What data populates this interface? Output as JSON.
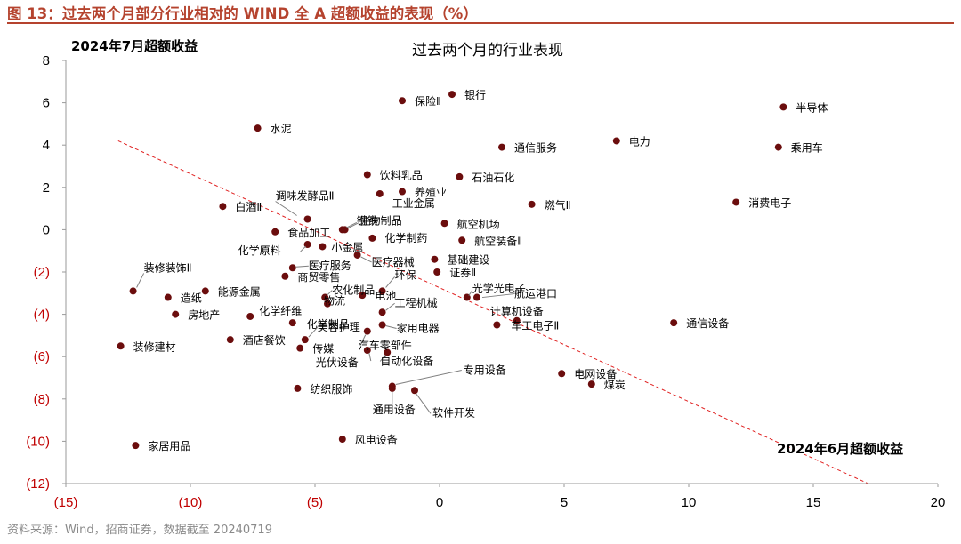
{
  "header": {
    "figure_title": "图 13：过去两个月部分行业相对的 WIND 全 A 超额收益的表现（%）"
  },
  "footer": {
    "source": "资料来源：Wind，招商证券，数据截至 20240719"
  },
  "colors": {
    "accent": "#b5432e",
    "point": "#6b0d0d",
    "trend": "#e02020",
    "negative_tick": "#c00000"
  },
  "chart_data": {
    "type": "scatter",
    "title": "过去两个月的行业表现",
    "xlabel": "2024年6月超额收益",
    "ylabel": "2024年7月超额收益",
    "xlim": [
      -15,
      20
    ],
    "ylim": [
      -12,
      8
    ],
    "x_ticks": [
      "(15)",
      "(10)",
      "(5)",
      "0",
      "5",
      "10",
      "15",
      "20"
    ],
    "y_ticks": [
      "8",
      "6",
      "4",
      "2",
      "0",
      "(2)",
      "(4)",
      "(6)",
      "(8)",
      "(10)",
      "(12)"
    ],
    "grid": false,
    "trend_line": {
      "style": "dashed",
      "from": [
        -12.9,
        4.2
      ],
      "to": [
        17.2,
        -12.0
      ]
    },
    "points": [
      {
        "name": "银行",
        "x": 0.5,
        "y": 6.4
      },
      {
        "name": "保险Ⅱ",
        "x": -1.5,
        "y": 6.1
      },
      {
        "name": "半导体",
        "x": 13.8,
        "y": 5.8
      },
      {
        "name": "水泥",
        "x": -7.3,
        "y": 4.8
      },
      {
        "name": "通信服务",
        "x": 2.5,
        "y": 3.9
      },
      {
        "name": "电力",
        "x": 7.1,
        "y": 4.2
      },
      {
        "name": "乘用车",
        "x": 13.6,
        "y": 3.9
      },
      {
        "name": "饮料乳品",
        "x": -2.9,
        "y": 2.6
      },
      {
        "name": "石油石化",
        "x": 0.8,
        "y": 2.5
      },
      {
        "name": "养殖业",
        "x": -1.5,
        "y": 1.8
      },
      {
        "name": "工业金属",
        "x": -2.4,
        "y": 1.7
      },
      {
        "name": "消费电子",
        "x": 11.9,
        "y": 1.3
      },
      {
        "name": "燃气Ⅱ",
        "x": 3.7,
        "y": 1.2
      },
      {
        "name": "白酒Ⅱ",
        "x": -8.7,
        "y": 1.1
      },
      {
        "name": "调味发酵品Ⅱ",
        "x": -5.3,
        "y": 0.5
      },
      {
        "name": "钢铁",
        "x": -3.9,
        "y": 0.0
      },
      {
        "name": "生物制品",
        "x": -3.8,
        "y": 0.0
      },
      {
        "name": "航空机场",
        "x": 0.2,
        "y": 0.3
      },
      {
        "name": "食品加工",
        "x": -6.6,
        "y": -0.1
      },
      {
        "name": "化学制药",
        "x": -2.7,
        "y": -0.4
      },
      {
        "name": "航空装备Ⅱ",
        "x": 0.9,
        "y": -0.5
      },
      {
        "name": "化学原料",
        "x": -5.3,
        "y": -0.7
      },
      {
        "name": "小金属",
        "x": -4.7,
        "y": -0.8
      },
      {
        "name": "医疗器械",
        "x": -3.3,
        "y": -1.2
      },
      {
        "name": "基础建设",
        "x": -0.2,
        "y": -1.4
      },
      {
        "name": "医疗服务",
        "x": -5.9,
        "y": -1.8
      },
      {
        "name": "证券Ⅱ",
        "x": -0.1,
        "y": -2.0
      },
      {
        "name": "商贸零售",
        "x": -6.2,
        "y": -2.2
      },
      {
        "name": "装修装饰Ⅱ",
        "x": -12.3,
        "y": -2.9
      },
      {
        "name": "能源金属",
        "x": -9.4,
        "y": -2.9
      },
      {
        "name": "环保",
        "x": -2.3,
        "y": -2.9
      },
      {
        "name": "电池",
        "x": -3.1,
        "y": -3.1
      },
      {
        "name": "造纸",
        "x": -10.9,
        "y": -3.2
      },
      {
        "name": "农化制品",
        "x": -4.6,
        "y": -3.2
      },
      {
        "name": "光学光电子",
        "x": 1.1,
        "y": -3.2
      },
      {
        "name": "航运港口",
        "x": 1.5,
        "y": -3.2
      },
      {
        "name": "物流",
        "x": -4.5,
        "y": -3.5
      },
      {
        "name": "工程机械",
        "x": -2.3,
        "y": -3.9
      },
      {
        "name": "房地产",
        "x": -10.6,
        "y": -4.0
      },
      {
        "name": "化学纤维",
        "x": -7.6,
        "y": -4.1
      },
      {
        "name": "化学制品",
        "x": -5.9,
        "y": -4.4
      },
      {
        "name": "计算机设备",
        "x": 3.1,
        "y": -4.3
      },
      {
        "name": "家用电器",
        "x": -2.3,
        "y": -4.5
      },
      {
        "name": "车工电子Ⅱ",
        "x": 2.3,
        "y": -4.5
      },
      {
        "name": "通信设备",
        "x": 9.4,
        "y": -4.4
      },
      {
        "name": "汽车零部件",
        "x": -2.9,
        "y": -4.8
      },
      {
        "name": "酒店餐饮",
        "x": -8.4,
        "y": -5.2
      },
      {
        "name": "美容护理",
        "x": -5.4,
        "y": -5.2
      },
      {
        "name": "装修建材",
        "x": -12.8,
        "y": -5.5
      },
      {
        "name": "传媒",
        "x": -5.6,
        "y": -5.6
      },
      {
        "name": "光伏设备",
        "x": -2.9,
        "y": -5.7
      },
      {
        "name": "自动化设备",
        "x": -2.1,
        "y": -5.8
      },
      {
        "name": "电网设备",
        "x": 4.9,
        "y": -6.8
      },
      {
        "name": "专用设备",
        "x": -1.9,
        "y": -7.4
      },
      {
        "name": "煤炭",
        "x": 6.1,
        "y": -7.3
      },
      {
        "name": "纺织服饰",
        "x": -5.7,
        "y": -7.5
      },
      {
        "name": "通用设备",
        "x": -1.9,
        "y": -7.5
      },
      {
        "name": "软件开发",
        "x": -1.0,
        "y": -7.6
      },
      {
        "name": "风电设备",
        "x": -3.9,
        "y": -9.9
      },
      {
        "name": "家居用品",
        "x": -12.2,
        "y": -10.2
      }
    ]
  }
}
